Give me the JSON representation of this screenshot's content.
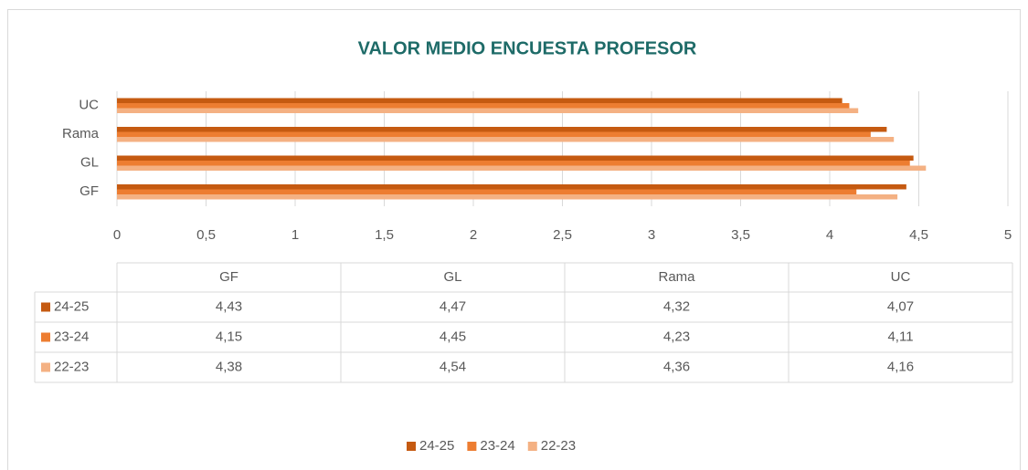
{
  "chart_data": {
    "type": "bar",
    "horizontal": true,
    "title": "VALOR MEDIO ENCUESTA PROFESOR",
    "categories": [
      "GF",
      "GL",
      "Rama",
      "UC"
    ],
    "series": [
      {
        "name": "24-25",
        "color": "#c55a11",
        "values": [
          4.43,
          4.47,
          4.32,
          4.07
        ],
        "value_labels": [
          "4,43",
          "4,47",
          "4,32",
          "4,07"
        ]
      },
      {
        "name": "23-24",
        "color": "#ed7d31",
        "values": [
          4.15,
          4.45,
          4.23,
          4.11
        ],
        "value_labels": [
          "4,15",
          "4,45",
          "4,23",
          "4,11"
        ]
      },
      {
        "name": "22-23",
        "color": "#f4b183",
        "values": [
          4.38,
          4.54,
          4.36,
          4.16
        ],
        "value_labels": [
          "4,38",
          "4,54",
          "4,36",
          "4,16"
        ]
      }
    ],
    "xlim": [
      0,
      5
    ],
    "xticks": [
      0,
      {
        "value": 0.5,
        "label": "0,5"
      },
      1,
      {
        "value": 1.5,
        "label": "1,5"
      },
      2,
      {
        "value": 2.5,
        "label": "2,5"
      },
      3,
      {
        "value": 3.5,
        "label": "3,5"
      },
      4,
      {
        "value": 4.5,
        "label": "4,5"
      },
      5
    ],
    "grid": true,
    "legend": "bottom",
    "data_table": true
  }
}
